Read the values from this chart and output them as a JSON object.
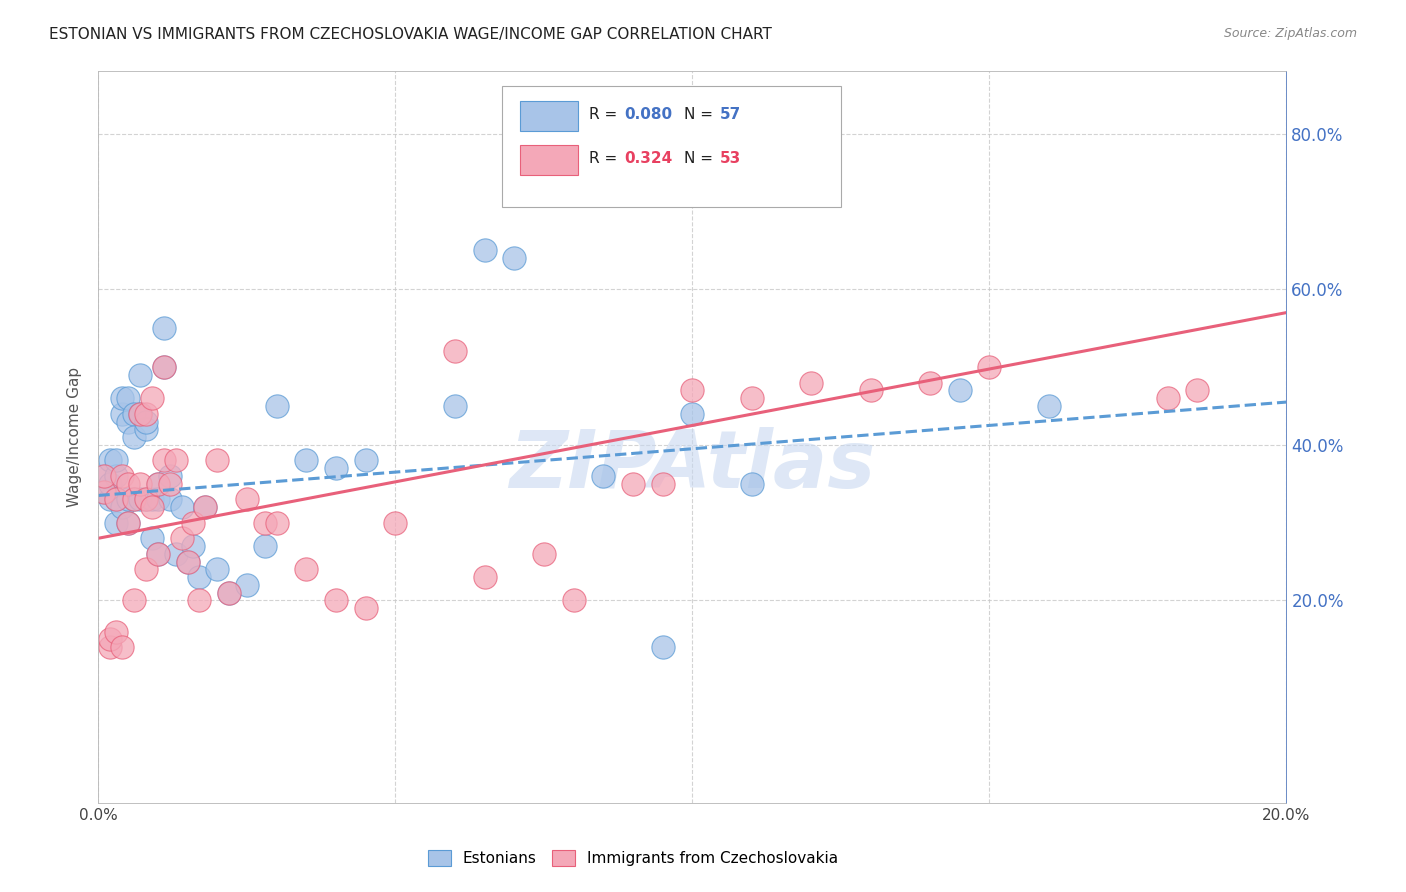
{
  "title": "ESTONIAN VS IMMIGRANTS FROM CZECHOSLOVAKIA WAGE/INCOME GAP CORRELATION CHART",
  "source": "Source: ZipAtlas.com",
  "ylabel": "Wage/Income Gap",
  "xmin": 0.0,
  "xmax": 0.2,
  "ymin": -0.06,
  "ymax": 0.88,
  "right_yticklabels": [
    "20.0%",
    "40.0%",
    "60.0%",
    "80.0%"
  ],
  "right_ytick_vals": [
    0.2,
    0.4,
    0.6,
    0.8
  ],
  "xtick_vals": [
    0.0,
    0.05,
    0.1,
    0.15,
    0.2
  ],
  "xticklabels": [
    "0.0%",
    "",
    "",
    "",
    "20.0%"
  ],
  "legend_label1": "Estonians",
  "legend_label2": "Immigrants from Czechoslovakia",
  "blue_fill": "#a8c4e8",
  "pink_fill": "#f4a8b8",
  "blue_edge": "#5b9bd5",
  "pink_edge": "#e8607a",
  "blue_r_color": "#4472c4",
  "pink_r_color": "#e84060",
  "blue_line_color": "#5b9bd5",
  "pink_line_color": "#e8607a",
  "watermark": "ZIPAtlas",
  "watermark_color": "#c8d8f0",
  "background_color": "#ffffff",
  "grid_color": "#c8c8c8",
  "blue_scatter_x": [
    0.001,
    0.001,
    0.002,
    0.002,
    0.002,
    0.003,
    0.003,
    0.003,
    0.003,
    0.004,
    0.004,
    0.004,
    0.005,
    0.005,
    0.005,
    0.005,
    0.006,
    0.006,
    0.006,
    0.007,
    0.007,
    0.007,
    0.008,
    0.008,
    0.008,
    0.009,
    0.009,
    0.01,
    0.01,
    0.01,
    0.011,
    0.011,
    0.012,
    0.012,
    0.013,
    0.014,
    0.015,
    0.016,
    0.017,
    0.018,
    0.02,
    0.022,
    0.025,
    0.028,
    0.03,
    0.035,
    0.04,
    0.045,
    0.06,
    0.065,
    0.07,
    0.085,
    0.095,
    0.1,
    0.11,
    0.145,
    0.16
  ],
  "blue_scatter_y": [
    0.34,
    0.36,
    0.33,
    0.35,
    0.38,
    0.36,
    0.38,
    0.3,
    0.33,
    0.32,
    0.44,
    0.46,
    0.43,
    0.46,
    0.33,
    0.3,
    0.44,
    0.41,
    0.33,
    0.44,
    0.33,
    0.49,
    0.42,
    0.33,
    0.43,
    0.33,
    0.28,
    0.35,
    0.33,
    0.26,
    0.5,
    0.55,
    0.33,
    0.36,
    0.26,
    0.32,
    0.25,
    0.27,
    0.23,
    0.32,
    0.24,
    0.21,
    0.22,
    0.27,
    0.45,
    0.38,
    0.37,
    0.38,
    0.45,
    0.65,
    0.64,
    0.36,
    0.14,
    0.44,
    0.35,
    0.47,
    0.45
  ],
  "pink_scatter_x": [
    0.001,
    0.001,
    0.002,
    0.002,
    0.003,
    0.003,
    0.004,
    0.004,
    0.005,
    0.005,
    0.006,
    0.006,
    0.007,
    0.007,
    0.008,
    0.008,
    0.008,
    0.009,
    0.009,
    0.01,
    0.01,
    0.011,
    0.011,
    0.012,
    0.013,
    0.014,
    0.015,
    0.016,
    0.017,
    0.018,
    0.02,
    0.022,
    0.025,
    0.028,
    0.03,
    0.035,
    0.04,
    0.045,
    0.05,
    0.06,
    0.065,
    0.075,
    0.08,
    0.09,
    0.095,
    0.1,
    0.11,
    0.12,
    0.13,
    0.14,
    0.15,
    0.18,
    0.185
  ],
  "pink_scatter_y": [
    0.34,
    0.36,
    0.14,
    0.15,
    0.16,
    0.33,
    0.36,
    0.14,
    0.3,
    0.35,
    0.33,
    0.2,
    0.44,
    0.35,
    0.44,
    0.33,
    0.24,
    0.46,
    0.32,
    0.35,
    0.26,
    0.5,
    0.38,
    0.35,
    0.38,
    0.28,
    0.25,
    0.3,
    0.2,
    0.32,
    0.38,
    0.21,
    0.33,
    0.3,
    0.3,
    0.24,
    0.2,
    0.19,
    0.3,
    0.52,
    0.23,
    0.26,
    0.2,
    0.35,
    0.35,
    0.47,
    0.46,
    0.48,
    0.47,
    0.48,
    0.5,
    0.46,
    0.47
  ],
  "blue_line_x0": 0.0,
  "blue_line_x1": 0.2,
  "blue_line_y0": 0.335,
  "blue_line_y1": 0.455,
  "pink_line_x0": 0.0,
  "pink_line_x1": 0.2,
  "pink_line_y0": 0.28,
  "pink_line_y1": 0.57
}
